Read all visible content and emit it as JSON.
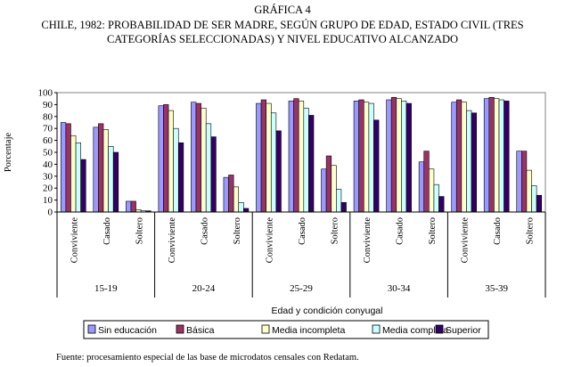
{
  "header": {
    "figure_label": "GRÁFICA 4",
    "title_line1": "CHILE, 1982: PROBABILIDAD DE SER MADRE, SEGÚN GRUPO DE EDAD, ESTADO CIVIL (TRES",
    "title_line2": "CATEGORÍAS SELECCIONADAS) Y NIVEL EDUCATIVO ALCANZADO"
  },
  "footer": {
    "source": "Fuente: procesamiento especial de las base de microdatos censales con Redatam."
  },
  "chart_data": {
    "type": "bar",
    "title": "CHILE, 1982: PROBABILIDAD DE SER MADRE, SEGÚN GRUPO DE EDAD, ESTADO CIVIL (TRES CATEGORÍAS SELECCIONADAS) Y NIVEL EDUCATIVO ALCANZADO",
    "ylabel": "Porcentaje",
    "xlabel": "Edad y condición conyugal",
    "ylim": [
      0,
      100
    ],
    "yticks": [
      "0",
      "10",
      "20",
      "30",
      "40",
      "50",
      "60",
      "70",
      "80",
      "90",
      "100"
    ],
    "groups": [
      "15-19",
      "20-24",
      "25-29",
      "30-34",
      "35-39"
    ],
    "subcategories": [
      "Conviviente",
      "Casado",
      "Soltero"
    ],
    "series": [
      {
        "name": "Sin educación",
        "color": "#9999ff",
        "values": [
          75,
          71,
          9,
          89,
          92,
          29,
          91,
          93,
          36,
          93,
          94,
          42,
          92,
          95,
          51
        ]
      },
      {
        "name": "Básica",
        "color": "#993366",
        "values": [
          74,
          74,
          9,
          90,
          91,
          31,
          94,
          95,
          47,
          94,
          96,
          51,
          94,
          96,
          51
        ]
      },
      {
        "name": "Media incompleta",
        "color": "#ffffcc",
        "values": [
          64,
          69,
          2,
          85,
          87,
          21,
          91,
          93,
          39,
          92,
          95,
          36,
          92,
          95,
          35
        ]
      },
      {
        "name": "Media completa",
        "color": "#ccffff",
        "values": [
          58,
          55,
          1,
          70,
          74,
          8,
          83,
          87,
          19,
          91,
          93,
          23,
          85,
          94,
          22
        ]
      },
      {
        "name": "Superior",
        "color": "#330066",
        "values": [
          44,
          50,
          1,
          58,
          63,
          3,
          68,
          81,
          8,
          77,
          91,
          13,
          83,
          93,
          14
        ]
      }
    ],
    "legend_position": "bottom",
    "grid": false
  }
}
